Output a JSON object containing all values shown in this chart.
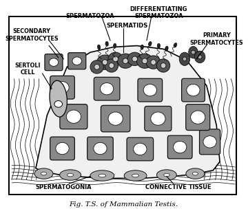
{
  "title": "Fig. T.S. of Mammalian Testis.",
  "bg_color": "#ffffff",
  "border_color": "#000000",
  "fig_width": 3.6,
  "fig_height": 3.23,
  "labels": {
    "spermatozoa": "SPERMATOZOA",
    "diff_spermatozoa": "DIFFERENTIATING\nSPERMATOZOA",
    "secondary": "SECONDARY\nSPERMATOCYTES",
    "primary": "PRIMARY\nSPERMATOCYTES",
    "spermatids": "SPERMATIDS",
    "sertoli": "SERTOLI\nCELL",
    "spermatogonia": "SPERMATOGONIA",
    "connective": "CONNECTIVE TISSUE"
  },
  "cell_gray": "#888888",
  "cell_dark": "#666666",
  "cell_edge": "#111111",
  "nuc_white": "#ffffff",
  "nuc_light": "#dddddd",
  "connective_gray": "#cccccc"
}
